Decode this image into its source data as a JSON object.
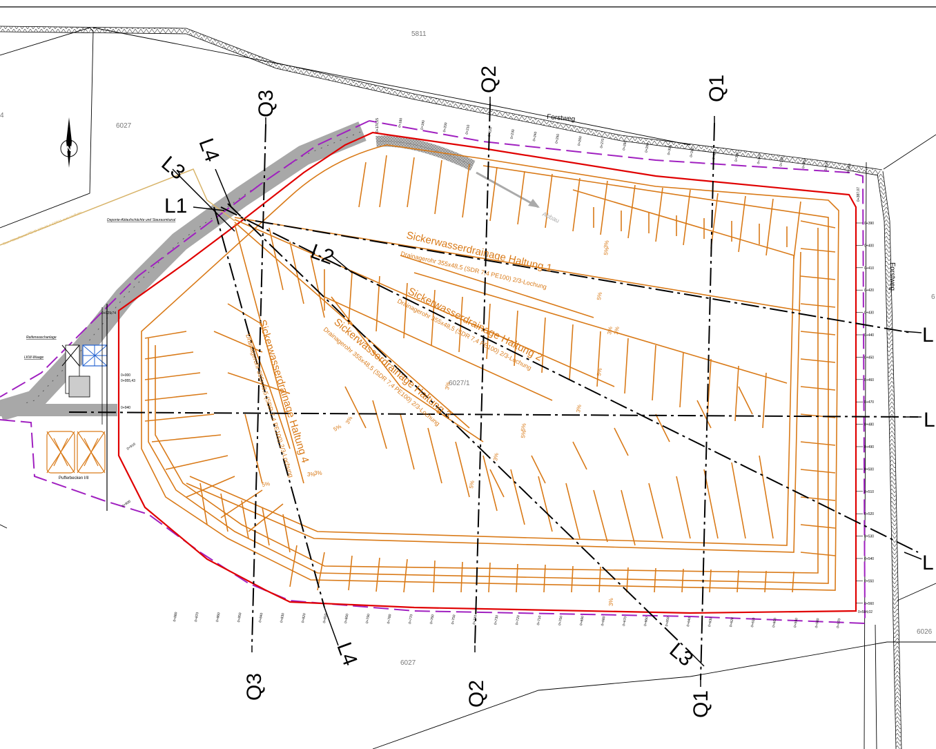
{
  "parcels": {
    "p5811": "5811",
    "p6027a": "6027",
    "p6027b": "6027",
    "p6027_1": "6027/1",
    "p6026": "6026",
    "p6_right": "6",
    "p4_left": "4"
  },
  "roads": {
    "forstweg_top": "Forstweg",
    "forstweg_right": "Forstweg"
  },
  "sections": {
    "q1_top": "Q1",
    "q1_bottom": "Q1",
    "q2_top": "Q2",
    "q2_bottom": "Q2",
    "q3_top": "Q3",
    "q3_bottom": "Q3",
    "l1": "L1",
    "l2": "L2",
    "l3_top": "L3",
    "l3_bottom": "L3",
    "l4_top": "L4",
    "l4_bottom": "L4",
    "r1": "L",
    "r2": "L",
    "r3": "L"
  },
  "drainage": [
    {
      "title": "Sickerwasserdrainage Haltung 1",
      "pipe": "Drainagerohr 355x48,5 (SDR 7,4 PE100) 2/3-Lochung"
    },
    {
      "title": "Sickerwasserdrainage Haltung 2",
      "pipe": "Drainagerohr 355x48,5 (SDR 7,4 PE100) 2/3-Lochung"
    },
    {
      "title": "Sickerwasserdrainage Haltung 3",
      "pipe": "Drainagerohr 355x48,5 (SDR 7,4 PE100) 2/3-Lochung"
    },
    {
      "title": "Sickerwasserdrainage Haltung 4",
      "pipe": "Drainagerohr 355x48,5 (SDR 7,4 PE100) 2/3-Lochung"
    }
  ],
  "labels": {
    "abbau": "Abbau",
    "deponie": "Deponie-Ablaufschächte und Stauraumkanal",
    "reifen": "Reifenwaschanlage",
    "lkw": "LKW-Waage",
    "puffer": "Pufferbecken I/II",
    "sew": "Swe-Ablaufkanal PEHD 160x16,4 SDR11 zum Vorfluter",
    "sta_start": "0+000",
    "sta_start_b": "0+955,43",
    "sta_end": "0+584,02",
    "sta_940": "0+940",
    "sta_029": "0+029,74",
    "sta_910": "0+910",
    "sta_900": "0+900",
    "sta_170": "0+170,15",
    "sta_387": "0+387,07"
  },
  "stations_top": [
    "0+180",
    "0+190",
    "0+200",
    "0+210",
    "0+220",
    "0+230",
    "0+240",
    "0+250",
    "0+260",
    "0+270",
    "0+280",
    "0+290",
    "0+300",
    "0+310",
    "0+320",
    "0+330",
    "0+340",
    "0+350",
    "0+360",
    "0+370",
    "0+380"
  ],
  "stations_right": [
    "0+390",
    "0+400",
    "0+410",
    "0+420",
    "0+430",
    "0+440",
    "0+450",
    "0+460",
    "0+470",
    "0+480",
    "0+490",
    "0+500",
    "0+510",
    "0+520",
    "0+530",
    "0+540",
    "0+550",
    "0+560"
  ],
  "stations_bottom": [
    "0+570",
    "0+580",
    "0+590",
    "0+600",
    "0+610",
    "0+620",
    "0+630",
    "0+640",
    "0+650",
    "0+660",
    "0+670",
    "0+680",
    "0+690",
    "0+700",
    "0+710",
    "0+720",
    "0+730",
    "0+740",
    "0+750",
    "0+760",
    "0+770",
    "0+780",
    "0+790",
    "0+800",
    "0+810",
    "0+820",
    "0+830",
    "0+840",
    "0+850",
    "0+860",
    "0+870",
    "0+880"
  ],
  "slopes": [
    "3%",
    "5%",
    "3%",
    "5%",
    "3%",
    "5%",
    "3%",
    "5%",
    "3%",
    "5%",
    "3%",
    "5%",
    "3%",
    "5%",
    "3%",
    "3%",
    "5%",
    "3%"
  ],
  "colors": {
    "orange": "#d97a18",
    "red": "#e00000",
    "purple": "#a020c0",
    "road": "#555555",
    "gray": "#a0a0a0"
  }
}
